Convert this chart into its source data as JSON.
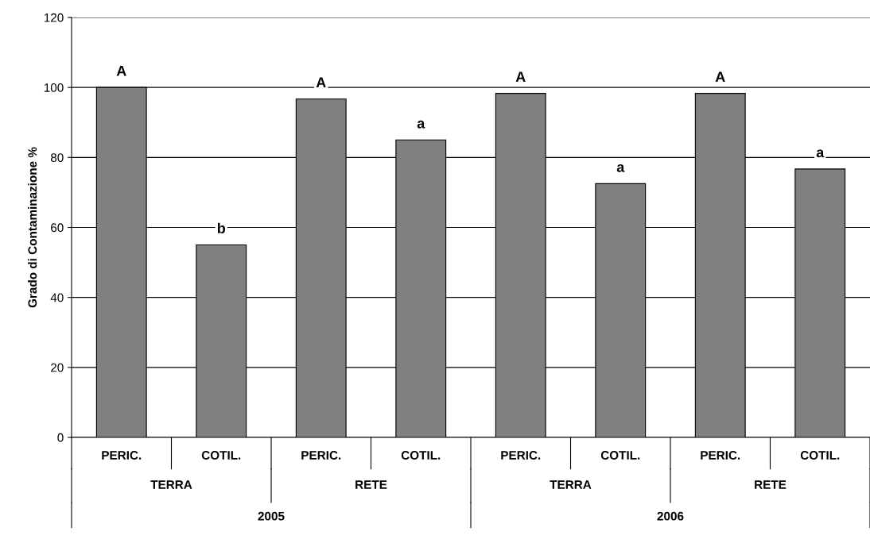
{
  "chart_data": {
    "type": "bar",
    "ylabel": "Grado di Contaminazione %",
    "categories": [
      "PERIC.",
      "COTIL.",
      "PERIC.",
      "COTIL.",
      "PERIC.",
      "COTIL.",
      "PERIC.",
      "COTIL."
    ],
    "values": [
      100,
      55,
      96.7,
      85,
      98.3,
      72.5,
      98.3,
      76.7
    ],
    "color": "#808080",
    "ylim": [
      0,
      120
    ],
    "yticks": [
      0,
      20,
      40,
      60,
      80,
      100,
      120
    ],
    "grid": "y",
    "annotations": [
      "A",
      "b",
      "A",
      "a",
      "A",
      "a",
      "A",
      "a",
      "TERRA",
      "RETE",
      "TERRA",
      "RETE",
      "2005",
      "2006"
    ]
  }
}
